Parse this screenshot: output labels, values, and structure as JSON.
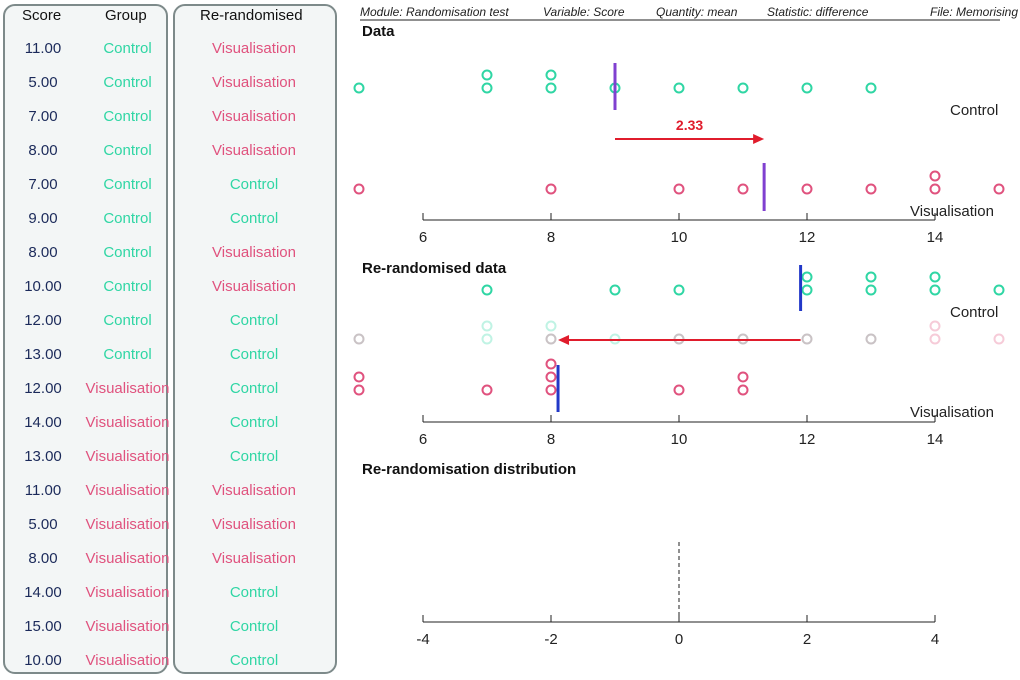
{
  "table": {
    "headers": {
      "score": "Score",
      "group": "Group",
      "rerandomised": "Re-randomised"
    },
    "rows": [
      {
        "score": "11.00",
        "group": "Control",
        "rerandomised": "Visualisation"
      },
      {
        "score": "5.00",
        "group": "Control",
        "rerandomised": "Visualisation"
      },
      {
        "score": "7.00",
        "group": "Control",
        "rerandomised": "Visualisation"
      },
      {
        "score": "8.00",
        "group": "Control",
        "rerandomised": "Visualisation"
      },
      {
        "score": "7.00",
        "group": "Control",
        "rerandomised": "Control"
      },
      {
        "score": "9.00",
        "group": "Control",
        "rerandomised": "Control"
      },
      {
        "score": "8.00",
        "group": "Control",
        "rerandomised": "Visualisation"
      },
      {
        "score": "10.00",
        "group": "Control",
        "rerandomised": "Visualisation"
      },
      {
        "score": "12.00",
        "group": "Control",
        "rerandomised": "Control"
      },
      {
        "score": "13.00",
        "group": "Control",
        "rerandomised": "Control"
      },
      {
        "score": "12.00",
        "group": "Visualisation",
        "rerandomised": "Control"
      },
      {
        "score": "14.00",
        "group": "Visualisation",
        "rerandomised": "Control"
      },
      {
        "score": "13.00",
        "group": "Visualisation",
        "rerandomised": "Control"
      },
      {
        "score": "11.00",
        "group": "Visualisation",
        "rerandomised": "Visualisation"
      },
      {
        "score": "5.00",
        "group": "Visualisation",
        "rerandomised": "Visualisation"
      },
      {
        "score": "8.00",
        "group": "Visualisation",
        "rerandomised": "Visualisation"
      },
      {
        "score": "14.00",
        "group": "Visualisation",
        "rerandomised": "Control"
      },
      {
        "score": "15.00",
        "group": "Visualisation",
        "rerandomised": "Control"
      },
      {
        "score": "10.00",
        "group": "Visualisation",
        "rerandomised": "Control"
      }
    ]
  },
  "info_bar": {
    "module": "Module: Randomisation test",
    "variable": "Variable: Score",
    "quantity": "Quantity: mean",
    "statistic": "Statistic: difference",
    "file": "File: Memorising Wo"
  },
  "colors": {
    "control": "#2fd6a4",
    "visualisation": "#e0527e",
    "median": "#8040d0",
    "rerand_median": "#2238c8",
    "arrow": "#e01c2c",
    "panel_border": "#7d8a8a"
  },
  "chart_data": [
    {
      "type": "scatter",
      "title": "Data",
      "groups": [
        {
          "name": "Control",
          "values": [
            11,
            5,
            7,
            8,
            7,
            9,
            8,
            10,
            12,
            13
          ],
          "mean": 9.0
        },
        {
          "name": "Visualisation",
          "values": [
            12,
            14,
            13,
            11,
            5,
            8,
            14,
            15,
            10
          ],
          "mean": 11.33
        }
      ],
      "difference_label": "2.33",
      "difference": 2.33,
      "xlim": [
        6,
        14
      ],
      "ticks": [
        6,
        8,
        10,
        12,
        14
      ]
    },
    {
      "type": "scatter",
      "title": "Re-randomised data",
      "groups": [
        {
          "name": "Control",
          "values": [
            7,
            9,
            12,
            13,
            12,
            14,
            13,
            14,
            15,
            10
          ],
          "mean": 11.9
        },
        {
          "name": "Visualisation",
          "values": [
            11,
            5,
            7,
            8,
            8,
            10,
            11,
            5,
            8
          ],
          "mean": 8.11
        }
      ],
      "arrow_from": 11.9,
      "arrow_to": 8.11,
      "xlim": [
        6,
        14
      ],
      "ticks": [
        6,
        8,
        10,
        12,
        14
      ]
    },
    {
      "type": "scatter",
      "title": "Re-randomisation distribution",
      "values": [],
      "reference_line": 0,
      "xlim": [
        -4,
        4
      ],
      "ticks": [
        "-4",
        "-2",
        "0",
        "2",
        "4"
      ]
    }
  ]
}
